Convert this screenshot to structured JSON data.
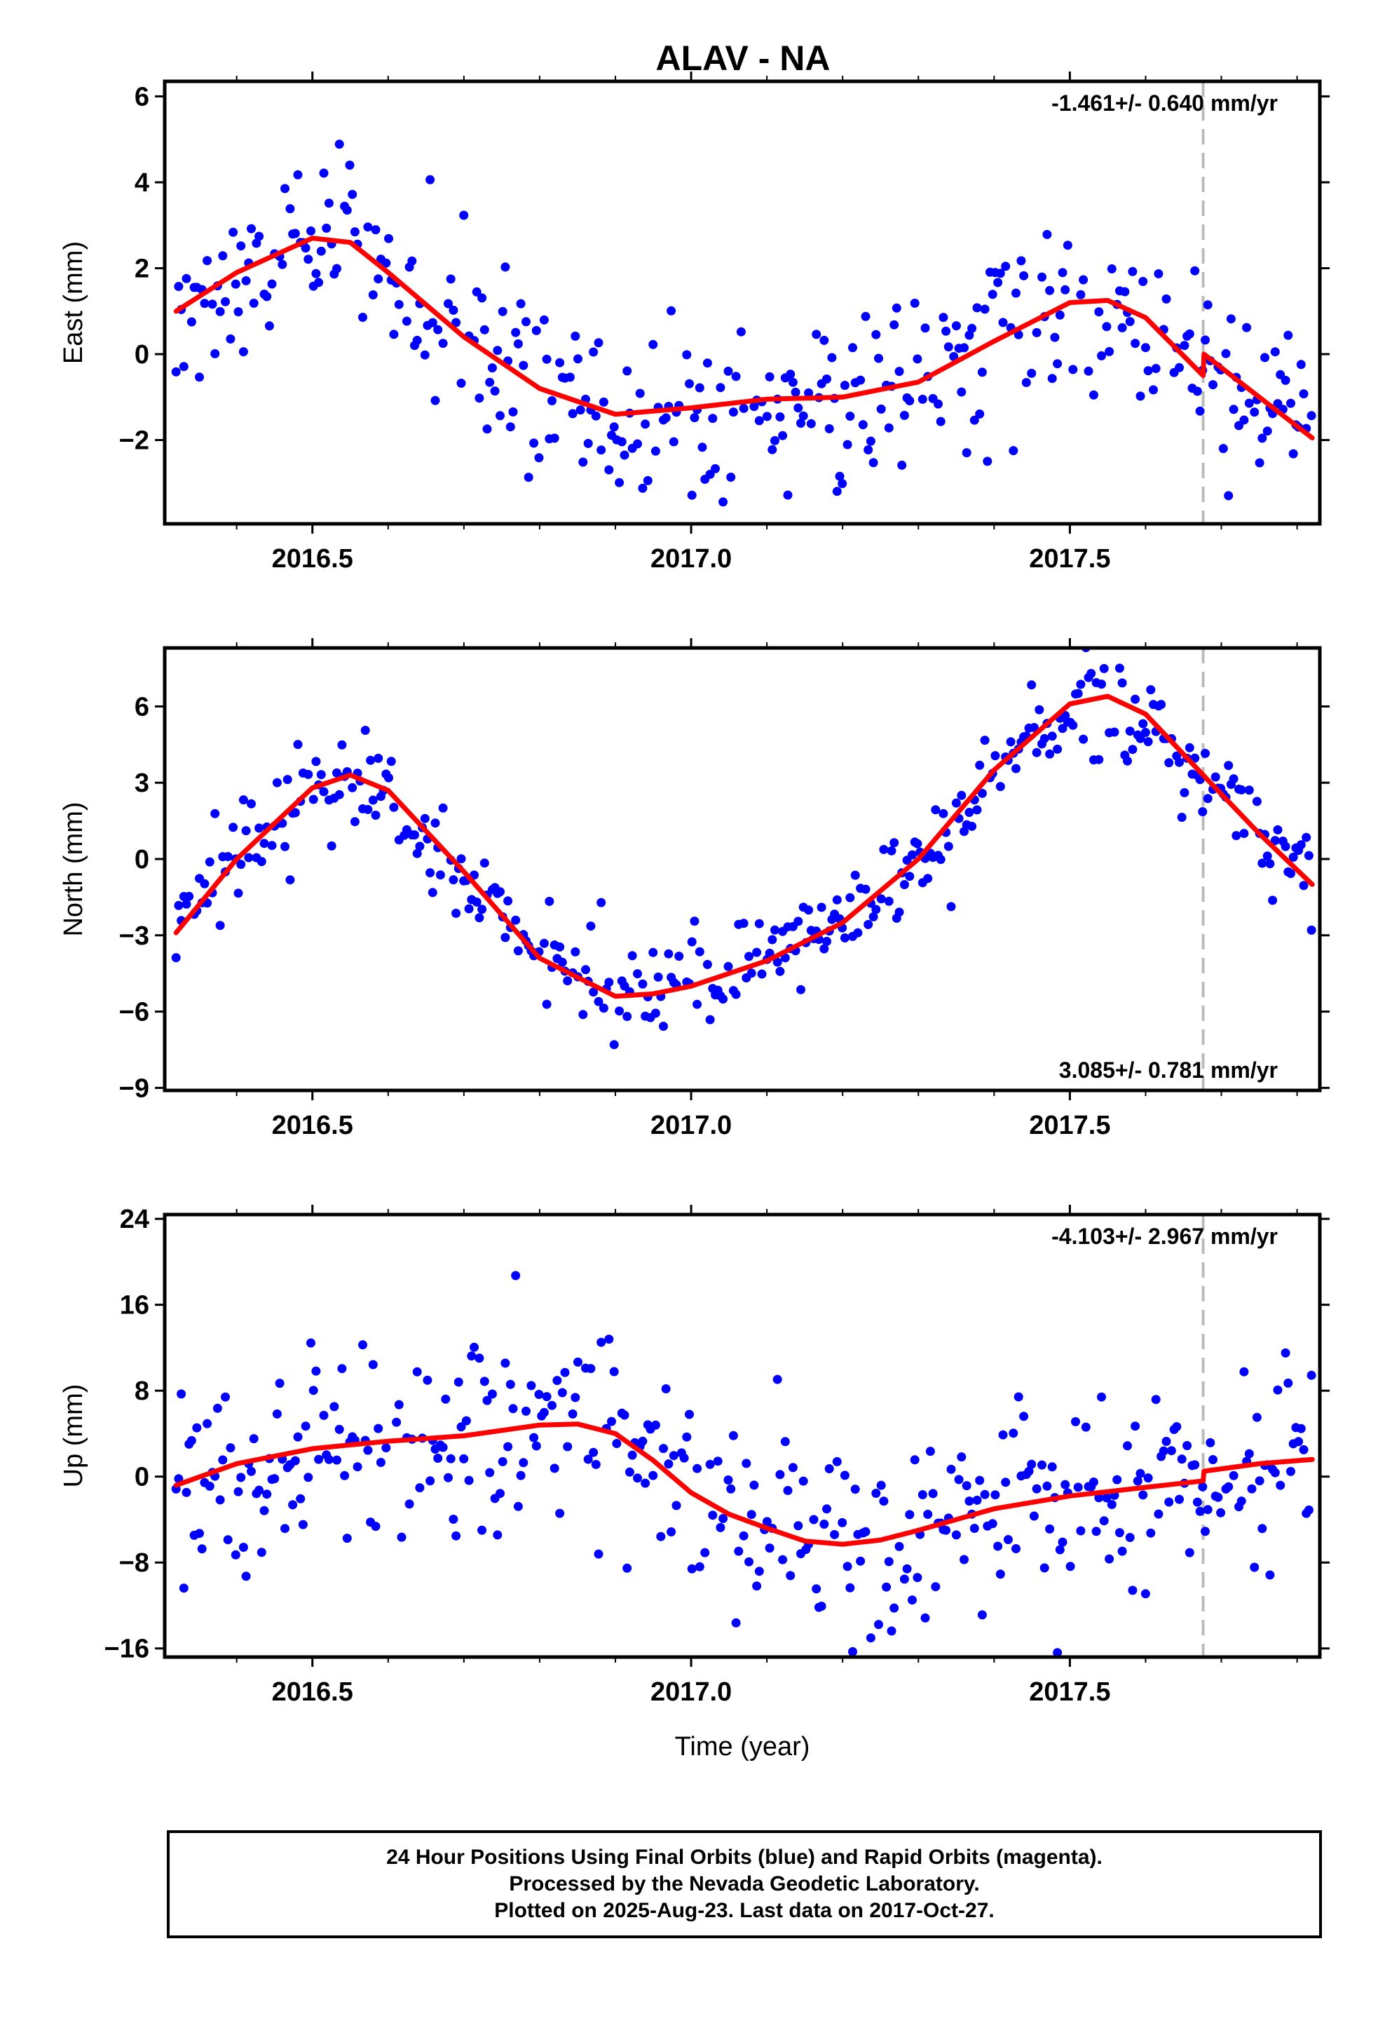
{
  "title": "ALAV - NA",
  "caption": {
    "line1": "24 Hour Positions Using Final Orbits (blue) and Rapid Orbits (magenta).",
    "line2": "Processed by the Nevada Geodetic Laboratory.",
    "line3": "Plotted on 2025-Aug-23. Last data on 2017-Oct-27."
  },
  "colors": {
    "final_orbits": "#0000ff",
    "model": "#ff0000",
    "event_line": "#bbbbbb"
  },
  "chart_data": [
    {
      "type": "scatter",
      "title": "ALAV - NA",
      "ylabel": "East (mm)",
      "xlabel": "",
      "xlim": [
        2016.305,
        2017.83
      ],
      "ylim": [
        -3.95,
        6.35
      ],
      "yticks": [
        -2,
        0,
        2,
        4,
        6
      ],
      "ytick_labels": [
        "−2",
        "0",
        "2",
        "4",
        "6"
      ],
      "xticks": [
        2016.5,
        2017.0,
        2017.5
      ],
      "xtick_labels": [
        "2016.5",
        "2017.0",
        "2017.5"
      ],
      "event_line_x": 2017.676,
      "rate_text": "-1.461+/- 0.640 mm/yr",
      "rate_position": "top-right",
      "model": {
        "x": [
          2016.32,
          2016.4,
          2016.5,
          2016.55,
          2016.6,
          2016.7,
          2016.8,
          2016.9,
          2017.0,
          2017.1,
          2017.2,
          2017.3,
          2017.4,
          2017.5,
          2017.55,
          2017.6,
          2017.676,
          2017.677,
          2017.75,
          2017.82
        ],
        "y": [
          1.0,
          1.9,
          2.7,
          2.6,
          1.9,
          0.4,
          -0.8,
          -1.4,
          -1.25,
          -1.05,
          -1.0,
          -0.65,
          0.3,
          1.2,
          1.25,
          0.85,
          -0.5,
          0.0,
          -1.0,
          -1.95
        ]
      },
      "series": [
        {
          "type": "scatter",
          "x": [],
          "y": []
        }
      ]
    },
    {
      "type": "scatter",
      "ylabel": "North (mm)",
      "xlabel": "",
      "xlim": [
        2016.305,
        2017.83
      ],
      "ylim": [
        -9.1,
        8.3
      ],
      "yticks": [
        -9,
        -6,
        -3,
        0,
        3,
        6
      ],
      "ytick_labels": [
        "−9",
        "−6",
        "−3",
        "0",
        "3",
        "6"
      ],
      "xticks": [
        2016.5,
        2017.0,
        2017.5
      ],
      "xtick_labels": [
        "2016.5",
        "2017.0",
        "2017.5"
      ],
      "event_line_x": 2017.676,
      "rate_text": "3.085+/- 0.781 mm/yr",
      "rate_position": "bottom-right",
      "model": {
        "x": [
          2016.32,
          2016.4,
          2016.5,
          2016.55,
          2016.6,
          2016.7,
          2016.8,
          2016.9,
          2016.95,
          2017.0,
          2017.1,
          2017.2,
          2017.3,
          2017.4,
          2017.5,
          2017.55,
          2017.6,
          2017.676,
          2017.75,
          2017.82
        ],
        "y": [
          -2.9,
          0.0,
          2.8,
          3.3,
          2.7,
          -0.5,
          -3.9,
          -5.4,
          -5.3,
          -5.0,
          -4.0,
          -2.5,
          0.0,
          3.5,
          6.1,
          6.4,
          5.7,
          3.3,
          1.0,
          -1.0
        ]
      },
      "series": [
        {
          "type": "scatter",
          "x": [],
          "y": []
        }
      ]
    },
    {
      "type": "scatter",
      "ylabel": "Up (mm)",
      "xlabel": "Time (year)",
      "xlim": [
        2016.305,
        2017.83
      ],
      "ylim": [
        -16.8,
        24.4
      ],
      "yticks": [
        -16,
        -8,
        0,
        8,
        16,
        24
      ],
      "ytick_labels": [
        "−16",
        "−8",
        "0",
        "8",
        "16",
        "24"
      ],
      "xticks": [
        2016.5,
        2017.0,
        2017.5
      ],
      "xtick_labels": [
        "2016.5",
        "2017.0",
        "2017.5"
      ],
      "event_line_x": 2017.676,
      "rate_text": "-4.103+/- 2.967 mm/yr",
      "rate_position": "top-right",
      "model": {
        "x": [
          2016.32,
          2016.4,
          2016.5,
          2016.6,
          2016.7,
          2016.8,
          2016.85,
          2016.9,
          2016.95,
          2017.0,
          2017.05,
          2017.1,
          2017.15,
          2017.2,
          2017.25,
          2017.3,
          2017.4,
          2017.5,
          2017.6,
          2017.676,
          2017.677,
          2017.75,
          2017.82
        ],
        "y": [
          -0.8,
          1.2,
          2.6,
          3.3,
          3.8,
          4.8,
          4.9,
          4.0,
          1.5,
          -1.5,
          -3.5,
          -4.8,
          -6.0,
          -6.3,
          -5.9,
          -5.0,
          -3.0,
          -1.8,
          -1.0,
          -0.4,
          0.5,
          1.2,
          1.6
        ]
      },
      "series": [
        {
          "type": "scatter",
          "x": [],
          "y": []
        }
      ]
    }
  ]
}
